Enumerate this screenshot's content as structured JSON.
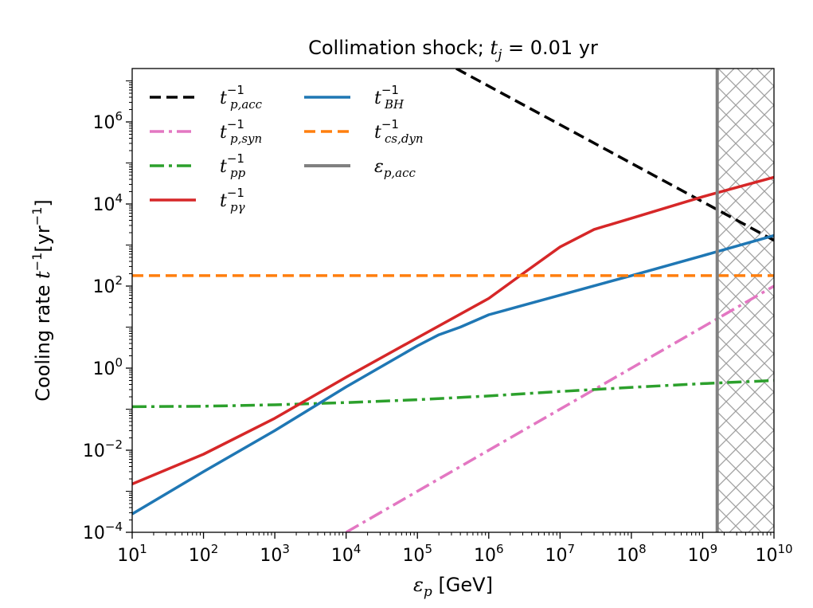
{
  "chart_data": {
    "type": "line",
    "title": "Collimation shock; t_j = 0.01 yr",
    "title_parts": {
      "prefix": "Collimation shock; ",
      "var": "t",
      "sub": "j",
      "suffix": " = 0.01 yr"
    },
    "xlabel": "ε_p [GeV]",
    "xlabel_parts": {
      "var": "ε",
      "sub": "p",
      "unit": " [GeV]"
    },
    "ylabel": "Cooling rate t⁻¹[yr⁻¹]",
    "ylabel_parts": {
      "text": "Cooling rate ",
      "var": "t",
      "sup": "−1",
      "unit_open": "[yr",
      "unit_sup": "−1",
      "unit_close": "]"
    },
    "x_scale": "log",
    "y_scale": "log",
    "xlim": [
      10,
      10000000000
    ],
    "ylim": [
      0.0001,
      20000000
    ],
    "grid": false,
    "legend_placement": "top-left",
    "x_ticks": [
      {
        "base": "10",
        "exp": "1"
      },
      {
        "base": "10",
        "exp": "2"
      },
      {
        "base": "10",
        "exp": "3"
      },
      {
        "base": "10",
        "exp": "4"
      },
      {
        "base": "10",
        "exp": "5"
      },
      {
        "base": "10",
        "exp": "6"
      },
      {
        "base": "10",
        "exp": "7"
      },
      {
        "base": "10",
        "exp": "8"
      },
      {
        "base": "10",
        "exp": "9"
      },
      {
        "base": "10",
        "exp": "10"
      }
    ],
    "y_ticks": [
      {
        "base": "10",
        "exp": "−4"
      },
      {
        "base": "10",
        "exp": "−2"
      },
      {
        "base": "10",
        "exp": "0"
      },
      {
        "base": "10",
        "exp": "2"
      },
      {
        "base": "10",
        "exp": "4"
      },
      {
        "base": "10",
        "exp": "6"
      }
    ],
    "series": [
      {
        "name": "t_p,acc^-1",
        "label_var": "t",
        "label_sub": "p,acc",
        "label_sup": "−1",
        "color": "#000000",
        "style": "dashed",
        "x": [
          350000,
          10000000000
        ],
        "y": [
          20000000,
          1300
        ]
      },
      {
        "name": "t_p,syn^-1",
        "label_var": "t",
        "label_sub": "p,syn",
        "label_sup": "−1",
        "color": "#e377c2",
        "style": "dashdot",
        "x": [
          10000,
          10000000000
        ],
        "y": [
          0.0001,
          100
        ]
      },
      {
        "name": "t_pp^-1",
        "label_var": "t",
        "label_sub": "pp",
        "label_sup": "−1",
        "color": "#2ca02c",
        "style": "dashdot",
        "x": [
          10,
          100,
          1000,
          10000,
          100000,
          1000000,
          10000000,
          100000000,
          1000000000,
          10000000000
        ],
        "y": [
          0.115,
          0.118,
          0.128,
          0.145,
          0.17,
          0.21,
          0.27,
          0.34,
          0.42,
          0.5
        ]
      },
      {
        "name": "t_pγ^-1",
        "label_var": "t",
        "label_sub": "pγ",
        "label_sup": "−1",
        "color": "#d62728",
        "style": "solid",
        "x": [
          10,
          100,
          1000,
          10000,
          100000,
          1000000,
          3000000,
          10000000,
          30000000,
          100000000,
          1000000000,
          10000000000
        ],
        "y": [
          0.0015,
          0.008,
          0.06,
          0.6,
          5.5,
          50,
          200,
          900,
          2400,
          4500,
          15000,
          45000
        ]
      },
      {
        "name": "t_BH^-1",
        "label_var": "t",
        "label_sub": "BH",
        "label_sup": "−1",
        "color": "#1f77b4",
        "style": "solid",
        "x": [
          10,
          100,
          1000,
          10000,
          100000,
          200000,
          400000,
          1000000,
          10000000,
          100000000,
          1000000000,
          10000000000
        ],
        "y": [
          0.00028,
          0.003,
          0.03,
          0.35,
          3.5,
          6.5,
          10,
          20,
          60,
          180,
          550,
          1700
        ]
      },
      {
        "name": "t_cs,dyn^-1",
        "label_var": "t",
        "label_sub": "cs,dyn",
        "label_sup": "−1",
        "color": "#ff7f0e",
        "style": "dashed",
        "x": [
          10,
          10000000000
        ],
        "y": [
          180,
          180
        ]
      },
      {
        "name": "ε_p,acc",
        "label_var": "ε",
        "label_sub": "p,acc",
        "label_sup": "",
        "color": "#808080",
        "style": "vertical",
        "x": [
          1600000000,
          1600000000
        ],
        "y": [
          0.0001,
          20000000
        ]
      }
    ],
    "hatched_region": {
      "x_from": 1600000000,
      "x_to": 10000000000,
      "color": "#a0a0a0"
    }
  }
}
